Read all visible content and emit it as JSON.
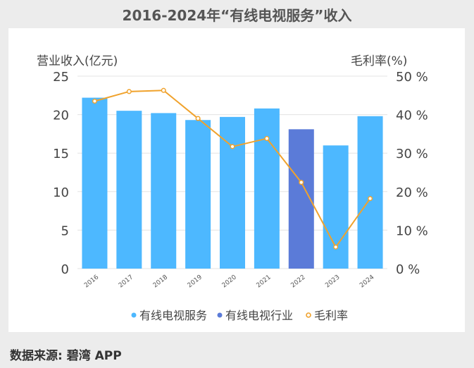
{
  "title": "2016-2024年“有线电视服务”收入",
  "source": "数据来源: 碧湾 APP",
  "chart_data": {
    "type": "bar",
    "categories": [
      "2016",
      "2017",
      "2018",
      "2019",
      "2020",
      "2021",
      "2022",
      "2023",
      "2024"
    ],
    "series": [
      {
        "name": "有线电视服务",
        "kind": "bar",
        "axis": "left",
        "color": "#4db8ff",
        "values": [
          22.2,
          20.5,
          20.2,
          19.3,
          19.7,
          20.8,
          null,
          16.0,
          19.8
        ]
      },
      {
        "name": "有线电视行业",
        "kind": "bar",
        "axis": "left",
        "color": "#5b7bd8",
        "values": [
          null,
          null,
          null,
          null,
          null,
          null,
          18.1,
          null,
          null
        ]
      },
      {
        "name": "毛利率",
        "kind": "line",
        "axis": "right",
        "color": "#f0a22c",
        "values": [
          43.5,
          46.0,
          46.3,
          39.0,
          31.7,
          33.8,
          22.4,
          5.6,
          18.2
        ]
      }
    ],
    "ylabel_left": "营业收入(亿元)",
    "ylabel_right": "毛利率(%)",
    "ylim_left": [
      0,
      25
    ],
    "yticks_left": [
      "0",
      "5",
      "10",
      "15",
      "20",
      "25"
    ],
    "ylim_right": [
      0,
      50
    ],
    "yticks_right": [
      "0 %",
      "10 %",
      "20 %",
      "30 %",
      "40 %",
      "50 %"
    ],
    "grid": true,
    "legend_position": "bottom"
  }
}
